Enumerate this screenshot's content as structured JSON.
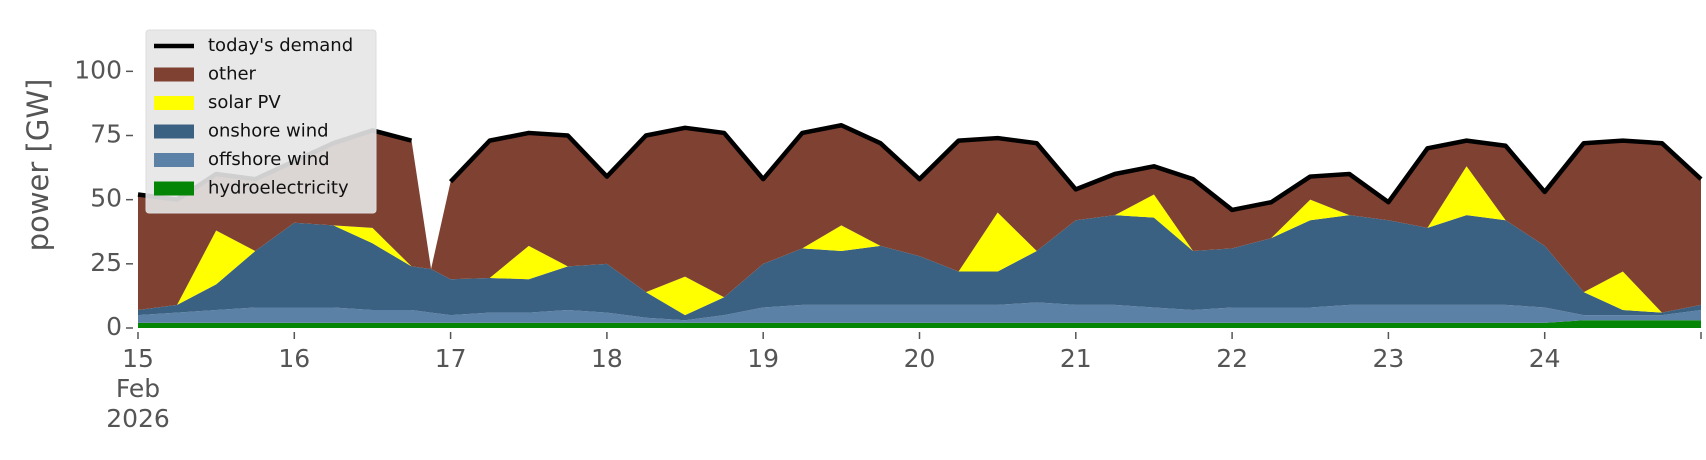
{
  "chart_data": {
    "type": "stacked_area",
    "y_label": "power [GW]",
    "x": [
      15,
      15.25,
      15.5,
      15.75,
      16,
      16.25,
      16.5,
      16.75,
      16.875,
      17,
      17.25,
      17.5,
      17.75,
      18,
      18.25,
      18.5,
      18.75,
      19,
      19.25,
      19.5,
      19.75,
      20,
      20.25,
      20.5,
      20.75,
      21,
      21.25,
      21.5,
      21.75,
      22,
      22.25,
      22.5,
      22.75,
      23,
      23.25,
      23.5,
      23.75,
      24,
      24.25,
      24.5,
      24.75,
      25
    ],
    "series": [
      {
        "name": "today's demand",
        "kind": "line",
        "color": "#000000",
        "values": [
          52,
          50,
          60,
          58,
          65,
          72,
          77,
          73,
          null,
          57,
          73,
          76,
          75,
          59,
          75,
          78,
          76,
          58,
          76,
          79,
          72,
          58,
          73,
          74,
          72,
          54,
          60,
          63,
          58,
          46,
          49,
          59,
          60,
          49,
          70,
          73,
          71,
          53,
          72,
          73,
          72,
          58
        ]
      },
      {
        "name": "other",
        "kind": "area",
        "color": "#7f4232",
        "values": [
          45,
          41,
          22,
          28,
          24,
          32,
          38,
          49,
          0,
          38,
          53.5,
          44,
          51,
          34,
          61,
          58,
          64,
          33,
          45,
          39,
          40,
          30,
          51,
          29,
          42,
          12,
          16,
          11,
          28,
          15,
          14,
          9,
          16,
          7,
          31,
          10,
          29,
          21,
          58,
          51,
          66,
          49
        ]
      },
      {
        "name": "solar PV",
        "kind": "area",
        "color": "#ffff00",
        "values": [
          0,
          0,
          21,
          0,
          0,
          0,
          6,
          0,
          0,
          0,
          0,
          13,
          0,
          0,
          0,
          15,
          0,
          0,
          0,
          10,
          0,
          0,
          0,
          23,
          0,
          0,
          0,
          9,
          0,
          0,
          0,
          8,
          0,
          0,
          0,
          19,
          0,
          0,
          0,
          15,
          0,
          0
        ]
      },
      {
        "name": "onshore wind",
        "kind": "area",
        "color": "#3b6182",
        "values": [
          2,
          3,
          10,
          22,
          33,
          32,
          26,
          17,
          17,
          14,
          13.5,
          13,
          17,
          19,
          10,
          2,
          7,
          17,
          22,
          21,
          23,
          19,
          13,
          13,
          20,
          33,
          35,
          35,
          23,
          23,
          27,
          34,
          35,
          33,
          30,
          35,
          33,
          24,
          9,
          2,
          1,
          2
        ]
      },
      {
        "name": "offshore wind",
        "kind": "area",
        "color": "#5b82a6",
        "values": [
          3,
          4,
          5,
          6,
          6,
          6,
          5,
          5,
          4,
          3,
          4,
          4,
          5,
          4,
          2,
          1,
          3,
          6,
          7,
          7,
          7,
          7,
          7,
          7,
          8,
          7,
          7,
          6,
          5,
          6,
          6,
          6,
          7,
          7,
          7,
          7,
          7,
          6,
          2,
          2,
          2,
          4
        ]
      },
      {
        "name": "hydroelectricity",
        "kind": "area",
        "color": "#058505",
        "values": [
          2,
          2,
          2,
          2,
          2,
          2,
          2,
          2,
          2,
          2,
          2,
          2,
          2,
          2,
          2,
          2,
          2,
          2,
          2,
          2,
          2,
          2,
          2,
          2,
          2,
          2,
          2,
          2,
          2,
          2,
          2,
          2,
          2,
          2,
          2,
          2,
          2,
          2,
          3,
          3,
          3,
          3
        ]
      }
    ],
    "xlim": [
      15,
      25
    ],
    "xticks": [
      {
        "value": 15,
        "label": "15\nFeb\n2026"
      },
      16,
      17,
      18,
      19,
      20,
      21,
      22,
      23,
      24,
      {
        "value": 25,
        "label": ""
      }
    ],
    "ylim": [
      0,
      120
    ],
    "yticks": [
      0,
      25,
      50,
      75,
      100
    ],
    "grid": false,
    "legend": "upper left"
  }
}
